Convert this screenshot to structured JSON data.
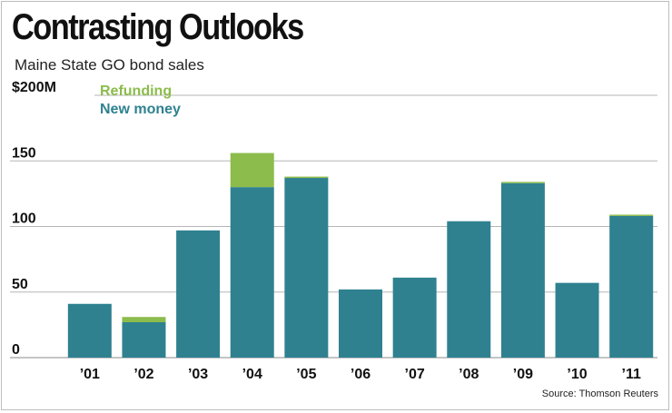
{
  "colors": {
    "new_money": "#2f8190",
    "refunding": "#8cbc4b",
    "gridline": "#b5b5b5",
    "text": "#111111"
  },
  "source": "Source: Thomson Reuters",
  "chart_data": {
    "type": "bar",
    "stacked": true,
    "title": "Contrasting Outlooks",
    "subtitle": "Maine State GO bond sales",
    "categories": [
      "’01",
      "’02",
      "’03",
      "’04",
      "’05",
      "’06",
      "’07",
      "’08",
      "’09",
      "’10",
      "’11"
    ],
    "series": [
      {
        "name": "New money",
        "values": [
          41,
          27,
          97,
          130,
          137,
          52,
          61,
          104,
          133,
          57,
          108
        ]
      },
      {
        "name": "Refunding",
        "values": [
          0,
          4,
          0,
          26,
          1,
          0,
          0,
          0,
          1,
          0,
          1
        ]
      }
    ],
    "y_ticks": [
      {
        "value": 0,
        "label": "0"
      },
      {
        "value": 50,
        "label": "50"
      },
      {
        "value": 100,
        "label": "100"
      },
      {
        "value": 150,
        "label": "150"
      },
      {
        "value": 200,
        "label": "$200M"
      }
    ],
    "ylim": [
      0,
      200
    ],
    "grid": true,
    "legend": "top-left"
  }
}
